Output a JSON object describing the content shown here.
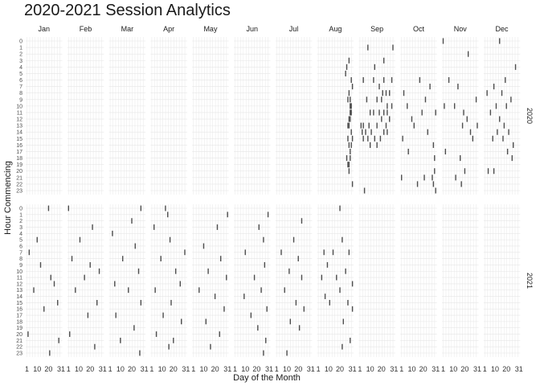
{
  "chart_data": {
    "type": "heatmap",
    "title": "2020-2021 Session Analytics",
    "xlabel": "Day of the Month",
    "ylabel": "Hour Commencing",
    "facet_columns": [
      "Jan",
      "Feb",
      "Mar",
      "Apr",
      "May",
      "Jun",
      "Jul",
      "Aug",
      "Sep",
      "Oct",
      "Nov",
      "Dec"
    ],
    "facet_rows": [
      "2020",
      "2021"
    ],
    "x_ticks": [
      1,
      10,
      20,
      31
    ],
    "xlim": [
      1,
      31
    ],
    "y_ticks": [
      "0",
      "1",
      "2",
      "3",
      "4",
      "5",
      "6",
      "7",
      "8",
      "9",
      "10",
      "11",
      "12",
      "13",
      "14",
      "15",
      "16",
      "17",
      "18",
      "19",
      "20",
      "21",
      "22",
      "23"
    ],
    "grid": true,
    "mark_color": "#4d4d4d",
    "sessions": {
      "2020": {
        "Aug": [
          [
            25,
            5
          ],
          [
            26,
            4
          ],
          [
            28,
            3
          ],
          [
            27,
            9
          ],
          [
            28,
            8
          ],
          [
            29,
            10
          ],
          [
            30,
            11
          ],
          [
            31,
            7
          ],
          [
            29,
            12
          ],
          [
            28,
            13
          ],
          [
            30,
            14
          ],
          [
            27,
            15
          ],
          [
            28,
            16
          ],
          [
            29,
            17
          ],
          [
            26,
            18
          ],
          [
            27,
            19
          ],
          [
            28,
            20
          ],
          [
            29,
            9
          ],
          [
            30,
            6
          ],
          [
            31,
            22
          ],
          [
            30,
            10
          ],
          [
            29,
            11
          ],
          [
            28,
            12
          ],
          [
            27,
            13
          ],
          [
            31,
            15
          ],
          [
            30,
            16
          ],
          [
            29,
            18
          ],
          [
            28,
            19
          ]
        ],
        "Sep": [
          [
            8,
            1
          ],
          [
            30,
            1
          ],
          [
            14,
            4
          ],
          [
            22,
            3
          ],
          [
            4,
            6
          ],
          [
            13,
            6
          ],
          [
            22,
            6
          ],
          [
            29,
            6
          ],
          [
            18,
            7
          ],
          [
            21,
            8
          ],
          [
            24,
            8
          ],
          [
            27,
            8
          ],
          [
            7,
            9
          ],
          [
            16,
            9
          ],
          [
            20,
            9
          ],
          [
            25,
            10
          ],
          [
            29,
            10
          ],
          [
            10,
            11
          ],
          [
            13,
            11
          ],
          [
            18,
            11
          ],
          [
            22,
            11
          ],
          [
            25,
            11
          ],
          [
            27,
            12
          ],
          [
            2,
            13
          ],
          [
            4,
            13
          ],
          [
            9,
            13
          ],
          [
            16,
            13
          ],
          [
            20,
            12
          ],
          [
            24,
            13
          ],
          [
            3,
            14
          ],
          [
            6,
            14
          ],
          [
            11,
            14
          ],
          [
            22,
            14
          ],
          [
            25,
            14
          ],
          [
            4,
            15
          ],
          [
            8,
            15
          ],
          [
            14,
            15
          ],
          [
            19,
            15
          ],
          [
            10,
            16
          ],
          [
            16,
            16
          ],
          [
            5,
            23
          ]
        ],
        "Oct": [
          [
            3,
            8
          ],
          [
            6,
            10
          ],
          [
            17,
            6
          ],
          [
            22,
            9
          ],
          [
            26,
            7
          ],
          [
            10,
            12
          ],
          [
            19,
            11
          ],
          [
            31,
            11
          ],
          [
            2,
            15
          ],
          [
            7,
            17
          ],
          [
            12,
            13
          ],
          [
            24,
            14
          ],
          [
            29,
            16
          ],
          [
            30,
            18
          ],
          [
            30,
            20
          ],
          [
            28,
            21
          ],
          [
            21,
            21
          ],
          [
            15,
            22
          ],
          [
            1,
            21
          ],
          [
            31,
            23
          ],
          [
            29,
            22
          ]
        ],
        "Nov": [
          [
            1,
            0
          ],
          [
            23,
            2
          ],
          [
            6,
            6
          ],
          [
            14,
            7
          ],
          [
            30,
            9
          ],
          [
            2,
            10
          ],
          [
            11,
            10
          ],
          [
            19,
            11
          ],
          [
            22,
            12
          ],
          [
            18,
            13
          ],
          [
            25,
            14
          ],
          [
            3,
            17
          ],
          [
            16,
            18
          ],
          [
            20,
            20
          ],
          [
            12,
            21
          ],
          [
            17,
            22
          ],
          [
            31,
            13
          ],
          [
            27,
            15
          ]
        ],
        "Dec": [
          [
            14,
            0
          ],
          [
            28,
            4
          ],
          [
            19,
            6
          ],
          [
            9,
            7
          ],
          [
            3,
            8
          ],
          [
            16,
            8
          ],
          [
            24,
            9
          ],
          [
            11,
            10
          ],
          [
            20,
            10
          ],
          [
            6,
            11
          ],
          [
            14,
            12
          ],
          [
            18,
            13
          ],
          [
            22,
            14
          ],
          [
            8,
            15
          ],
          [
            26,
            16
          ],
          [
            21,
            17
          ],
          [
            25,
            18
          ],
          [
            4,
            20
          ],
          [
            9,
            20
          ],
          [
            12,
            14
          ],
          [
            17,
            15
          ]
        ]
      },
      "2021": {
        "Jan": [
          [
            20,
            0
          ],
          [
            10,
            5
          ],
          [
            3,
            7
          ],
          [
            13,
            9
          ],
          [
            22,
            11
          ],
          [
            25,
            12
          ],
          [
            7,
            13
          ],
          [
            28,
            15
          ],
          [
            16,
            16
          ],
          [
            2,
            20
          ],
          [
            29,
            21
          ],
          [
            21,
            23
          ]
        ],
        "Feb": [
          [
            1,
            0
          ],
          [
            22,
            3
          ],
          [
            11,
            5
          ],
          [
            4,
            8
          ],
          [
            20,
            9
          ],
          [
            28,
            10
          ],
          [
            15,
            11
          ],
          [
            7,
            13
          ],
          [
            26,
            15
          ],
          [
            18,
            17
          ],
          [
            2,
            20
          ],
          [
            24,
            22
          ]
        ],
        "Mar": [
          [
            28,
            0
          ],
          [
            20,
            2
          ],
          [
            3,
            4
          ],
          [
            23,
            6
          ],
          [
            12,
            8
          ],
          [
            26,
            10
          ],
          [
            5,
            12
          ],
          [
            17,
            13
          ],
          [
            28,
            15
          ],
          [
            6,
            17
          ],
          [
            22,
            19
          ],
          [
            10,
            21
          ],
          [
            27,
            23
          ]
        ],
        "Apr": [
          [
            13,
            0
          ],
          [
            15,
            1
          ],
          [
            3,
            3
          ],
          [
            17,
            5
          ],
          [
            30,
            7
          ],
          [
            9,
            8
          ],
          [
            22,
            10
          ],
          [
            26,
            12
          ],
          [
            4,
            13
          ],
          [
            18,
            15
          ],
          [
            11,
            17
          ],
          [
            27,
            18
          ],
          [
            5,
            20
          ],
          [
            20,
            21
          ],
          [
            16,
            22
          ]
        ],
        "May": [
          [
            31,
            1
          ],
          [
            22,
            3
          ],
          [
            10,
            6
          ],
          [
            25,
            8
          ],
          [
            14,
            10
          ],
          [
            30,
            11
          ],
          [
            6,
            13
          ],
          [
            20,
            14
          ],
          [
            28,
            16
          ],
          [
            12,
            18
          ],
          [
            24,
            20
          ],
          [
            16,
            22
          ]
        ],
        "Jun": [
          [
            30,
            1
          ],
          [
            22,
            3
          ],
          [
            26,
            5
          ],
          [
            10,
            7
          ],
          [
            27,
            9
          ],
          [
            18,
            11
          ],
          [
            24,
            13
          ],
          [
            9,
            14
          ],
          [
            29,
            16
          ],
          [
            15,
            17
          ],
          [
            21,
            19
          ],
          [
            28,
            21
          ],
          [
            26,
            23
          ]
        ],
        "Jul": [
          [
            23,
            2
          ],
          [
            16,
            5
          ],
          [
            5,
            7
          ],
          [
            20,
            8
          ],
          [
            12,
            10
          ],
          [
            23,
            11
          ],
          [
            8,
            13
          ],
          [
            18,
            15
          ],
          [
            25,
            16
          ],
          [
            13,
            18
          ],
          [
            21,
            19
          ],
          [
            10,
            23
          ]
        ],
        "Aug": [
          [
            20,
            0
          ],
          [
            22,
            5
          ],
          [
            6,
            7
          ],
          [
            14,
            7
          ],
          [
            28,
            7
          ],
          [
            9,
            9
          ],
          [
            25,
            10
          ],
          [
            4,
            11
          ],
          [
            17,
            11
          ],
          [
            31,
            12
          ],
          [
            20,
            13
          ],
          [
            7,
            14
          ],
          [
            27,
            15
          ],
          [
            11,
            15
          ],
          [
            31,
            16
          ],
          [
            23,
            18
          ],
          [
            29,
            21
          ],
          [
            22,
            22
          ]
        ]
      }
    }
  }
}
